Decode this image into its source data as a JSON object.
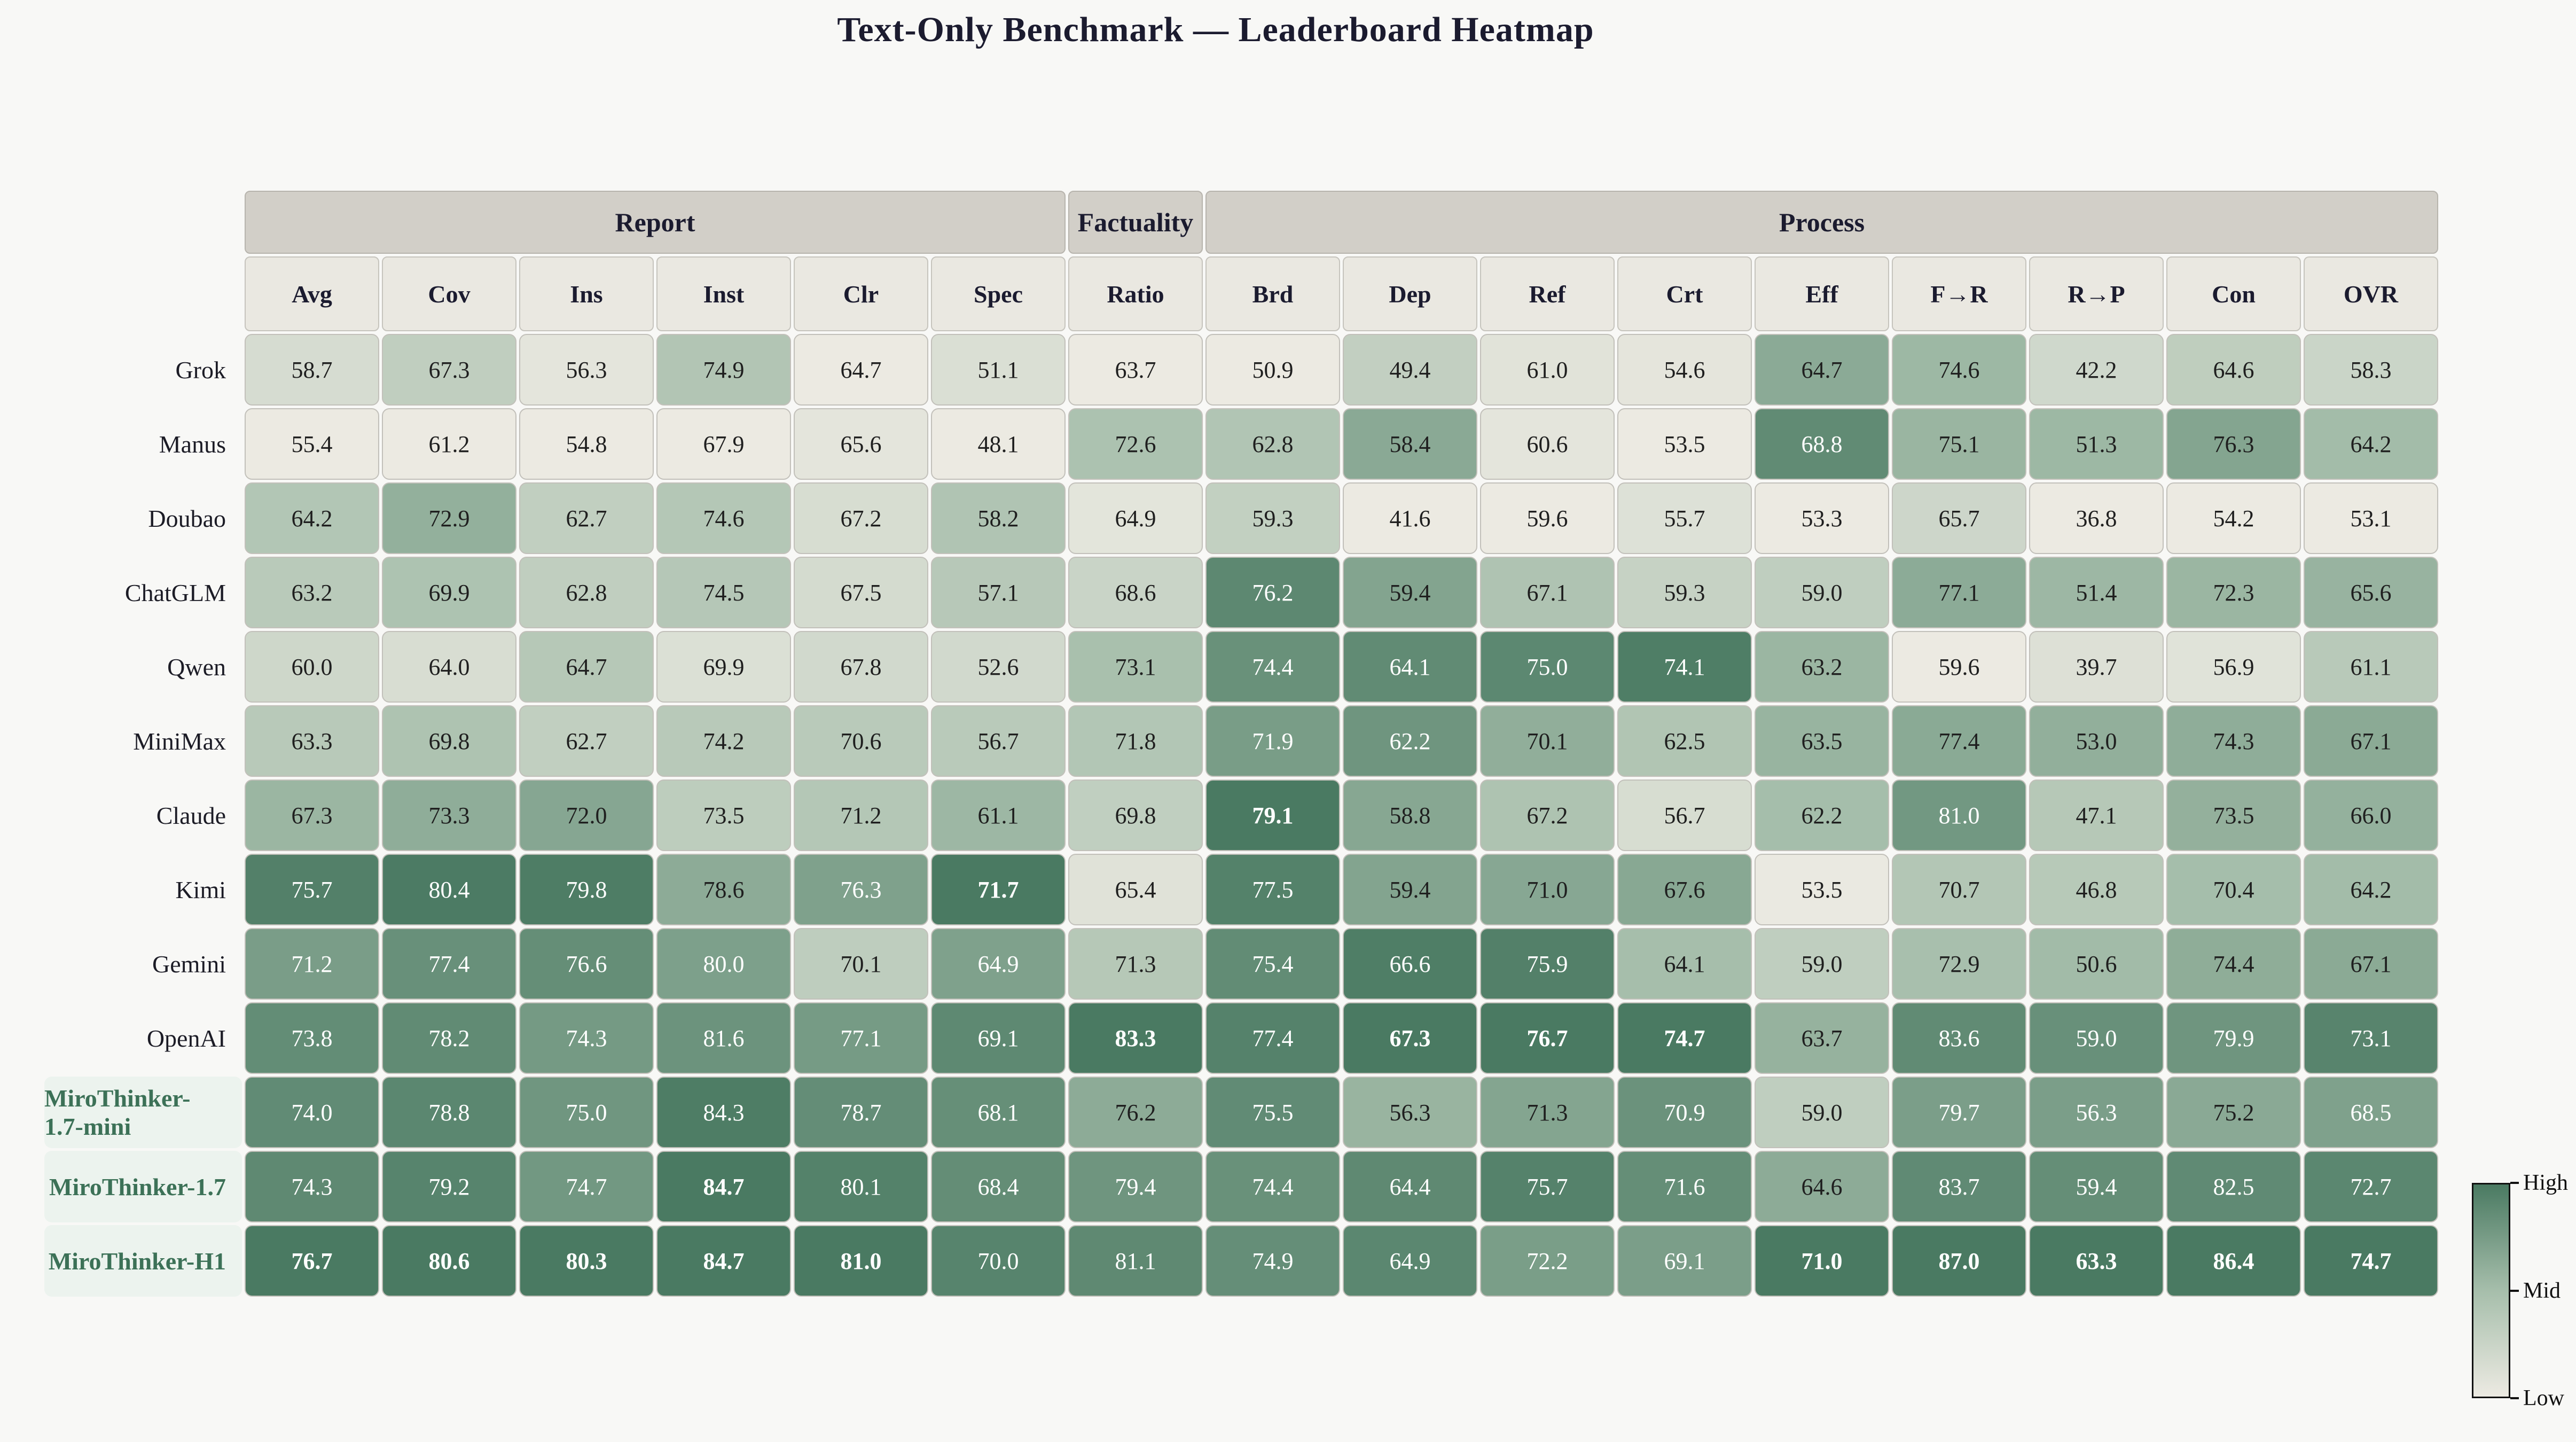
{
  "chart_data": {
    "type": "heatmap",
    "title": "Text-Only Benchmark — Leaderboard Heatmap",
    "column_groups": [
      {
        "label": "Report",
        "span": 6
      },
      {
        "label": "Factuality",
        "span": 1
      },
      {
        "label": "Process",
        "span": 9
      }
    ],
    "columns": [
      "Avg",
      "Cov",
      "Ins",
      "Inst",
      "Clr",
      "Spec",
      "Ratio",
      "Brd",
      "Dep",
      "Ref",
      "Crt",
      "Eff",
      "F→R",
      "R→P",
      "Con",
      "OVR"
    ],
    "rows": [
      {
        "name": "Grok",
        "highlight": false,
        "values": [
          58.7,
          67.3,
          56.3,
          74.9,
          64.7,
          51.1,
          63.7,
          50.9,
          49.4,
          61.0,
          54.6,
          64.7,
          74.6,
          42.2,
          64.6,
          58.3
        ]
      },
      {
        "name": "Manus",
        "highlight": false,
        "values": [
          55.4,
          61.2,
          54.8,
          67.9,
          65.6,
          48.1,
          72.6,
          62.8,
          58.4,
          60.6,
          53.5,
          68.8,
          75.1,
          51.3,
          76.3,
          64.2
        ]
      },
      {
        "name": "Doubao",
        "highlight": false,
        "values": [
          64.2,
          72.9,
          62.7,
          74.6,
          67.2,
          58.2,
          64.9,
          59.3,
          41.6,
          59.6,
          55.7,
          53.3,
          65.7,
          36.8,
          54.2,
          53.1
        ]
      },
      {
        "name": "ChatGLM",
        "highlight": false,
        "values": [
          63.2,
          69.9,
          62.8,
          74.5,
          67.5,
          57.1,
          68.6,
          76.2,
          59.4,
          67.1,
          59.3,
          59.0,
          77.1,
          51.4,
          72.3,
          65.6
        ]
      },
      {
        "name": "Qwen",
        "highlight": false,
        "values": [
          60.0,
          64.0,
          64.7,
          69.9,
          67.8,
          52.6,
          73.1,
          74.4,
          64.1,
          75.0,
          74.1,
          63.2,
          59.6,
          39.7,
          56.9,
          61.1
        ]
      },
      {
        "name": "MiniMax",
        "highlight": false,
        "values": [
          63.3,
          69.8,
          62.7,
          74.2,
          70.6,
          56.7,
          71.8,
          71.9,
          62.2,
          70.1,
          62.5,
          63.5,
          77.4,
          53.0,
          74.3,
          67.1
        ]
      },
      {
        "name": "Claude",
        "highlight": false,
        "values": [
          67.3,
          73.3,
          72.0,
          73.5,
          71.2,
          61.1,
          69.8,
          79.1,
          58.8,
          67.2,
          56.7,
          62.2,
          81.0,
          47.1,
          73.5,
          66.0
        ]
      },
      {
        "name": "Kimi",
        "highlight": false,
        "values": [
          75.7,
          80.4,
          79.8,
          78.6,
          76.3,
          71.7,
          65.4,
          77.5,
          59.4,
          71.0,
          67.6,
          53.5,
          70.7,
          46.8,
          70.4,
          64.2
        ]
      },
      {
        "name": "Gemini",
        "highlight": false,
        "values": [
          71.2,
          77.4,
          76.6,
          80.0,
          70.1,
          64.9,
          71.3,
          75.4,
          66.6,
          75.9,
          64.1,
          59.0,
          72.9,
          50.6,
          74.4,
          67.1
        ]
      },
      {
        "name": "OpenAI",
        "highlight": false,
        "values": [
          73.8,
          78.2,
          74.3,
          81.6,
          77.1,
          69.1,
          83.3,
          77.4,
          67.3,
          76.7,
          74.7,
          63.7,
          83.6,
          59.0,
          79.9,
          73.1
        ]
      },
      {
        "name": "MiroThinker-1.7-mini",
        "highlight": true,
        "values": [
          74.0,
          78.8,
          75.0,
          84.3,
          78.7,
          68.1,
          76.2,
          75.5,
          56.3,
          71.3,
          70.9,
          59.0,
          79.7,
          56.3,
          75.2,
          68.5
        ]
      },
      {
        "name": "MiroThinker-1.7",
        "highlight": true,
        "values": [
          74.3,
          79.2,
          74.7,
          84.7,
          80.1,
          68.4,
          79.4,
          74.4,
          64.4,
          75.7,
          71.6,
          64.6,
          83.7,
          59.4,
          82.5,
          72.7
        ]
      },
      {
        "name": "MiroThinker-H1",
        "highlight": true,
        "values": [
          76.7,
          80.6,
          80.3,
          84.7,
          81.0,
          70.0,
          81.1,
          74.9,
          64.9,
          72.2,
          69.1,
          71.0,
          87.0,
          63.3,
          86.4,
          74.7
        ]
      }
    ],
    "normalization": "per-column min-max",
    "bold_rule": "column max value is bold",
    "white_text_rule": "normalized value > 0.70",
    "colormap": {
      "low": "#ECEAE2",
      "mid": "#A6BEAB",
      "high": "#4A7A62"
    },
    "colorbar_labels": [
      "High",
      "Mid",
      "Low"
    ],
    "legend_position": "bottom-right vertical colorbar",
    "colors": {
      "page_bg": "#F8F8F6",
      "title_text": "#1B1B2F",
      "group_header_bg": "#D2CFC8",
      "column_header_bg": "#EAE8E1",
      "header_text": "#1B1B2F",
      "row_label_text": "#1C1C26",
      "highlight_label_text": "#3C7157",
      "highlight_label_bg": "#ECF3EE",
      "cell_text_dark": "#1F1F1F",
      "cell_text_light": "#FFFFFF"
    }
  }
}
